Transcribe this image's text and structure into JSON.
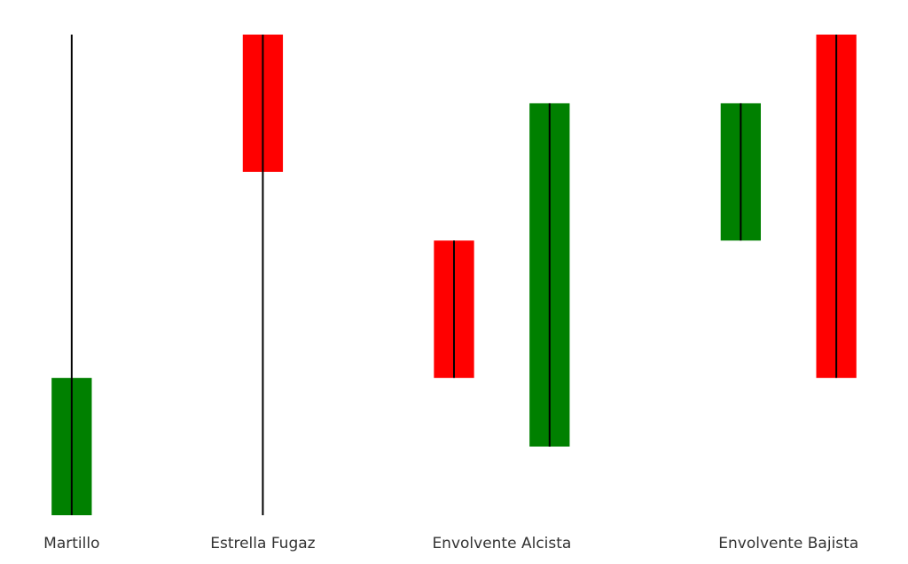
{
  "chart_data": {
    "type": "candlestick",
    "xlim": [
      -0.75,
      8.75
    ],
    "ylim": [
      0,
      7
    ],
    "up_color": "#008000",
    "down_color": "#ff0000",
    "wick_color": "#000000",
    "groups": [
      {
        "name": "Martillo",
        "candles": [
          {
            "x": 0,
            "open": 0,
            "high": 7,
            "low": 0,
            "close": 2
          }
        ]
      },
      {
        "name": "Estrella Fugaz",
        "candles": [
          {
            "x": 2,
            "open": 7,
            "high": 7,
            "low": 0,
            "close": 5
          }
        ]
      },
      {
        "name": "Envolvente Alcista",
        "candles": [
          {
            "x": 4,
            "open": 4,
            "high": 4,
            "low": 2,
            "close": 2
          },
          {
            "x": 5,
            "open": 1,
            "high": 6,
            "low": 1,
            "close": 6
          }
        ]
      },
      {
        "name": "Envolvente Bajista",
        "candles": [
          {
            "x": 7,
            "open": 4,
            "high": 6,
            "low": 4,
            "close": 6
          },
          {
            "x": 8,
            "open": 7,
            "high": 7,
            "low": 2,
            "close": 2
          }
        ]
      }
    ]
  }
}
